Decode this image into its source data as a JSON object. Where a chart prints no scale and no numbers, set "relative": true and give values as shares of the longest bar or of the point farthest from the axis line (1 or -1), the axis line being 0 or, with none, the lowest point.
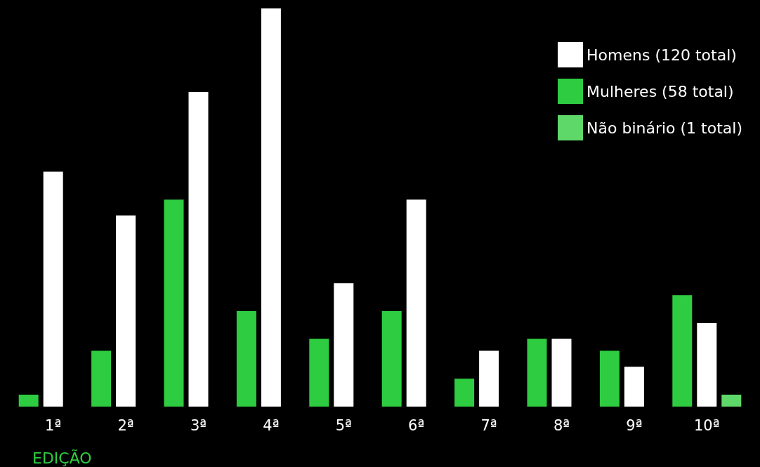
{
  "chart_data": {
    "type": "bar",
    "relative": true,
    "xlabel": "EDIÇÃO",
    "legend": "top right",
    "categories": [
      "1ª",
      "2ª",
      "3ª",
      "4ª",
      "5ª",
      "6ª",
      "7ª",
      "8ª",
      "9ª",
      "10ª"
    ],
    "series": [
      {
        "name": "Mulheres (58 total)",
        "color": "#2ecc40",
        "values": [
          0.03,
          0.14,
          0.52,
          0.24,
          0.17,
          0.24,
          0.07,
          0.17,
          0.14,
          0.28
        ]
      },
      {
        "name": "Homens (120 total)",
        "color": "#ffffff",
        "values": [
          0.59,
          0.48,
          0.79,
          1,
          0.31,
          0.52,
          0.14,
          0.17,
          0.1,
          0.21
        ]
      },
      {
        "name": "Não binário (1 total)",
        "color": "#5fd86a",
        "values": [
          null,
          null,
          null,
          null,
          null,
          null,
          null,
          null,
          null,
          0.03
        ]
      }
    ]
  }
}
